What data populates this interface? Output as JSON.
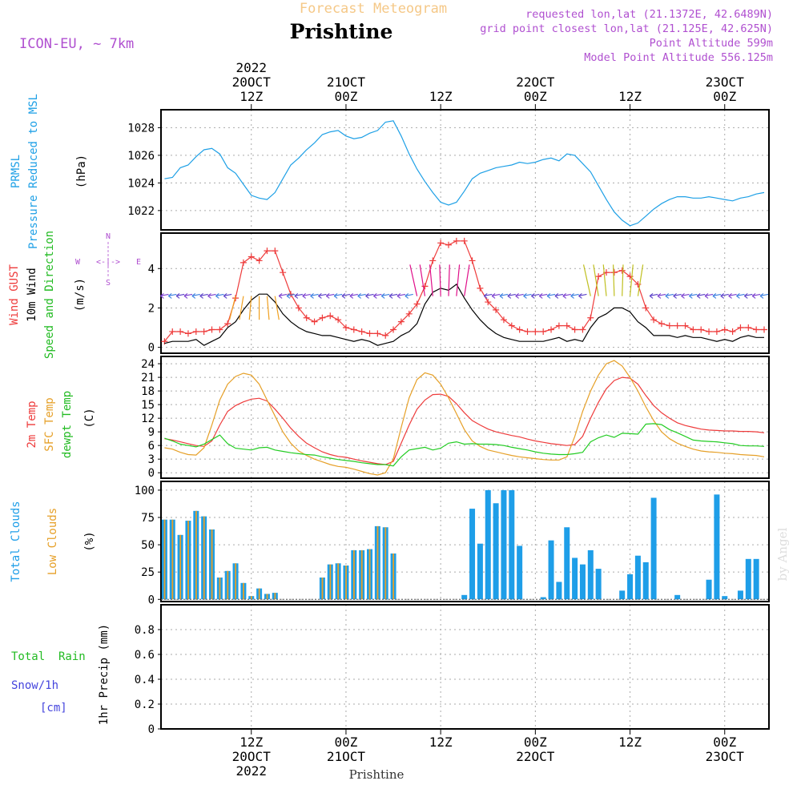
{
  "header": {
    "product": "Forecast Meteogram",
    "station": "Prishtine",
    "model": "ICON-EU, ~ 7km",
    "requested": "requested lon,lat (21.1372E, 42.6489N)",
    "grid_point": "grid point closest lon,lat (21.125E, 42.625N)",
    "point_altitude": "Point Altitude 599m",
    "model_altitude": "Model Point Altitude 556.125m",
    "footer_station": "Prishtine",
    "credit": "by Angel"
  },
  "time_axis": {
    "top": [
      {
        "lines": [
          "2022",
          "20OCT",
          "12Z"
        ]
      },
      {
        "lines": [
          "21OCT",
          "00Z"
        ]
      },
      {
        "lines": [
          "12Z"
        ]
      },
      {
        "lines": [
          "22OCT",
          "00Z"
        ]
      },
      {
        "lines": [
          "12Z"
        ]
      },
      {
        "lines": [
          "23OCT",
          "00Z"
        ]
      }
    ],
    "bottom": [
      {
        "lines": [
          "12Z",
          "20OCT",
          "2022"
        ]
      },
      {
        "lines": [
          "00Z",
          "21OCT"
        ]
      },
      {
        "lines": [
          "12Z"
        ]
      },
      {
        "lines": [
          "00Z",
          "22OCT"
        ]
      },
      {
        "lines": [
          "12Z"
        ]
      },
      {
        "lines": [
          "00Z",
          "23OCT"
        ]
      }
    ]
  },
  "panels": {
    "pressure": {
      "labels": [
        "PRMSL",
        "Pressure Reduced to MSL"
      ],
      "unit": "(hPa)"
    },
    "wind": {
      "labels": [
        "Wind GUST",
        "10m Wind",
        "Speed and Direction"
      ],
      "unit": "(m/s)",
      "compass": {
        "n": "N",
        "s": "S",
        "w": "W",
        "e": "E",
        "arrow_h": "<-|->"
      }
    },
    "temp": {
      "labels": [
        "2m Temp",
        "SFC Temp",
        "dewpt Temp"
      ],
      "unit": "(C)"
    },
    "clouds": {
      "labels": [
        "Total Clouds",
        "Low Clouds"
      ],
      "unit": "(%)"
    },
    "precip": {
      "labels": [
        "Total  Rain",
        "Snow/1h",
        "[cm]"
      ],
      "unit": "1hr Precip (mm)"
    }
  },
  "colors": {
    "pressure": "#1ea0e6",
    "gust": "#ee3b3b",
    "wind": "#000000",
    "temp2m": "#ee3b3b",
    "sfc": "#e6a028",
    "dew": "#22cc22",
    "total_clouds": "#1e9ee8",
    "low_clouds": "#e6a028",
    "purple": "#b050d0",
    "rain": "#22bb22",
    "snow": "#4444dd",
    "title_orange": "#f5c887"
  },
  "chart_data": [
    {
      "type": "line",
      "title": "PRMSL Pressure Reduced to MSL",
      "ylabel": "(hPa)",
      "ylim": [
        1020.6,
        1029.3
      ],
      "yticks": [
        1022,
        1024,
        1026,
        1028
      ],
      "x_hours": [
        0,
        1,
        2,
        3,
        4,
        5,
        6,
        7,
        8,
        9,
        10,
        11,
        12,
        13,
        14,
        15,
        16,
        17,
        18,
        19,
        20,
        21,
        22,
        23,
        24,
        25,
        26,
        27,
        28,
        29,
        30,
        31,
        32,
        33,
        34,
        35,
        36,
        37,
        38,
        39,
        40,
        41,
        42,
        43,
        44,
        45,
        46,
        47,
        48,
        49,
        50,
        51,
        52,
        53,
        54,
        55,
        56,
        57,
        58,
        59,
        60,
        61,
        62,
        63,
        64,
        65,
        66,
        67,
        68,
        69,
        70,
        71,
        72,
        73,
        74,
        75,
        76
      ],
      "series": [
        {
          "values": [
            1024.3,
            1024.4,
            1025.1,
            1025.3,
            1025.9,
            1026.4,
            1026.5,
            1026.1,
            1025.1,
            1024.7,
            1023.9,
            1023.1,
            1022.9,
            1022.8,
            1023.3,
            1024.3,
            1025.3,
            1025.8,
            1026.4,
            1026.9,
            1027.5,
            1027.7,
            1027.8,
            1027.4,
            1027.2,
            1027.3,
            1027.6,
            1027.8,
            1028.4,
            1028.5,
            1027.4,
            1026.1,
            1025.0,
            1024.1,
            1023.3,
            1022.6,
            1022.4,
            1022.6,
            1023.4,
            1024.3,
            1024.7,
            1024.9,
            1025.1,
            1025.2,
            1025.3,
            1025.5,
            1025.4,
            1025.5,
            1025.7,
            1025.8,
            1025.6,
            1026.1,
            1026.0,
            1025.4,
            1024.8,
            1023.8,
            1022.8,
            1021.9,
            1021.3,
            1020.9,
            1021.1,
            1021.6,
            1022.1,
            1022.5,
            1022.8,
            1023.0,
            1023.0,
            1022.9,
            1022.9,
            1023.0,
            1022.9,
            1022.8,
            1022.7,
            1022.9,
            1023.0,
            1023.2,
            1023.3
          ]
        }
      ]
    },
    {
      "type": "line",
      "title": "Wind GUST, 10m Wind Speed and Direction",
      "ylabel": "(m/s)",
      "ylim": [
        -0.3,
        5.8
      ],
      "yticks": [
        0,
        2,
        4
      ],
      "x_hours": [
        0,
        1,
        2,
        3,
        4,
        5,
        6,
        7,
        8,
        9,
        10,
        11,
        12,
        13,
        14,
        15,
        16,
        17,
        18,
        19,
        20,
        21,
        22,
        23,
        24,
        25,
        26,
        27,
        28,
        29,
        30,
        31,
        32,
        33,
        34,
        35,
        36,
        37,
        38,
        39,
        40,
        41,
        42,
        43,
        44,
        45,
        46,
        47,
        48,
        49,
        50,
        51,
        52,
        53,
        54,
        55,
        56,
        57,
        58,
        59,
        60,
        61,
        62,
        63,
        64,
        65,
        66,
        67,
        68,
        69,
        70,
        71,
        72,
        73,
        74,
        75,
        76
      ],
      "series": [
        {
          "name": "Wind GUST",
          "values": [
            0.3,
            0.8,
            0.8,
            0.7,
            0.8,
            0.8,
            0.9,
            0.9,
            1.2,
            2.5,
            4.3,
            4.6,
            4.4,
            4.9,
            4.9,
            3.8,
            2.7,
            2.0,
            1.5,
            1.3,
            1.5,
            1.6,
            1.4,
            1.0,
            0.9,
            0.8,
            0.7,
            0.7,
            0.6,
            0.9,
            1.3,
            1.7,
            2.2,
            3.1,
            4.4,
            5.3,
            5.2,
            5.4,
            5.4,
            4.4,
            3.0,
            2.3,
            1.9,
            1.4,
            1.1,
            0.9,
            0.8,
            0.8,
            0.8,
            0.9,
            1.1,
            1.1,
            0.9,
            0.9,
            1.5,
            3.6,
            3.8,
            3.8,
            3.9,
            3.6,
            3.2,
            2.0,
            1.4,
            1.2,
            1.1,
            1.1,
            1.1,
            0.9,
            0.9,
            0.8,
            0.8,
            0.9,
            0.8,
            1.0,
            1.0,
            0.9,
            0.9
          ]
        },
        {
          "name": "10m Wind",
          "values": [
            0.2,
            0.3,
            0.3,
            0.3,
            0.4,
            0.1,
            0.3,
            0.5,
            1.0,
            1.3,
            1.9,
            2.4,
            2.7,
            2.7,
            2.3,
            1.7,
            1.3,
            1.0,
            0.8,
            0.7,
            0.6,
            0.6,
            0.5,
            0.4,
            0.3,
            0.4,
            0.3,
            0.1,
            0.2,
            0.3,
            0.6,
            0.8,
            1.2,
            2.2,
            2.8,
            3.0,
            2.9,
            3.2,
            2.5,
            1.9,
            1.4,
            1.0,
            0.7,
            0.5,
            0.4,
            0.3,
            0.3,
            0.3,
            0.3,
            0.4,
            0.5,
            0.3,
            0.4,
            0.3,
            1.0,
            1.5,
            1.7,
            2.0,
            2.0,
            1.8,
            1.3,
            1.0,
            0.6,
            0.6,
            0.6,
            0.5,
            0.6,
            0.5,
            0.5,
            0.4,
            0.3,
            0.4,
            0.3,
            0.5,
            0.6,
            0.5,
            0.5
          ]
        }
      ]
    },
    {
      "type": "line",
      "title": "2m Temp, SFC Temp, dewpt Temp",
      "ylabel": "(C)",
      "ylim": [
        -1.2,
        25.6
      ],
      "yticks": [
        0,
        3,
        6,
        9,
        12,
        15,
        18,
        21,
        24
      ],
      "x_hours": [
        0,
        1,
        2,
        3,
        4,
        5,
        6,
        7,
        8,
        9,
        10,
        11,
        12,
        13,
        14,
        15,
        16,
        17,
        18,
        19,
        20,
        21,
        22,
        23,
        24,
        25,
        26,
        27,
        28,
        29,
        30,
        31,
        32,
        33,
        34,
        35,
        36,
        37,
        38,
        39,
        40,
        41,
        42,
        43,
        44,
        45,
        46,
        47,
        48,
        49,
        50,
        51,
        52,
        53,
        54,
        55,
        56,
        57,
        58,
        59,
        60,
        61,
        62,
        63,
        64,
        65,
        66,
        67,
        68,
        69,
        70,
        71,
        72,
        73,
        74,
        75,
        76
      ],
      "series": [
        {
          "name": "2m Temp",
          "values": [
            7.5,
            7.2,
            6.8,
            6.4,
            6.0,
            5.8,
            7.0,
            10.5,
            13.5,
            14.8,
            15.6,
            16.2,
            16.4,
            15.8,
            14.0,
            12.0,
            9.8,
            8.0,
            6.5,
            5.5,
            4.6,
            4.0,
            3.6,
            3.4,
            3.0,
            2.6,
            2.3,
            2.0,
            1.8,
            2.5,
            6.5,
            10.5,
            14.0,
            16.0,
            17.2,
            17.3,
            16.8,
            15.2,
            13.2,
            11.5,
            10.5,
            9.6,
            9.0,
            8.6,
            8.2,
            7.9,
            7.4,
            7.0,
            6.7,
            6.4,
            6.2,
            6.0,
            6.2,
            8.0,
            12.0,
            15.5,
            18.5,
            20.3,
            21.0,
            20.8,
            19.5,
            17.0,
            14.8,
            13.2,
            12.0,
            11.0,
            10.4,
            10.0,
            9.6,
            9.4,
            9.3,
            9.2,
            9.2,
            9.1,
            9.1,
            9.0,
            8.8
          ]
        },
        {
          "name": "SFC Temp",
          "values": [
            5.5,
            5.2,
            4.5,
            4.0,
            3.9,
            5.5,
            10.5,
            16.0,
            19.5,
            21.2,
            21.9,
            21.5,
            19.5,
            16.0,
            12.5,
            9.0,
            6.5,
            4.8,
            3.8,
            3.0,
            2.4,
            1.8,
            1.4,
            1.2,
            0.8,
            0.3,
            -0.2,
            -0.5,
            0.0,
            3.0,
            10.0,
            16.5,
            20.5,
            22.0,
            21.5,
            19.5,
            16.5,
            13.0,
            9.5,
            7.0,
            5.8,
            5.0,
            4.6,
            4.2,
            3.8,
            3.5,
            3.3,
            3.1,
            2.9,
            2.8,
            2.8,
            3.5,
            8.0,
            13.5,
            18.0,
            21.5,
            24.0,
            24.7,
            23.5,
            21.0,
            18.0,
            14.5,
            11.5,
            9.0,
            7.5,
            6.5,
            5.8,
            5.2,
            4.8,
            4.6,
            4.5,
            4.3,
            4.2,
            4.0,
            3.9,
            3.8,
            3.5
          ]
        },
        {
          "name": "dewpt Temp",
          "values": [
            7.6,
            7.0,
            6.3,
            6.0,
            5.7,
            6.3,
            7.3,
            8.3,
            6.4,
            5.4,
            5.2,
            5.0,
            5.5,
            5.6,
            5.0,
            4.7,
            4.4,
            4.2,
            4.0,
            3.9,
            3.5,
            3.2,
            2.9,
            2.7,
            2.5,
            2.2,
            2.0,
            1.8,
            1.8,
            1.5,
            3.5,
            5.0,
            5.3,
            5.6,
            5.0,
            5.4,
            6.5,
            6.8,
            6.3,
            6.4,
            6.3,
            6.3,
            6.2,
            6.0,
            5.6,
            5.3,
            5.0,
            4.6,
            4.3,
            4.1,
            4.0,
            4.0,
            4.2,
            4.5,
            6.8,
            7.7,
            8.3,
            7.8,
            8.7,
            8.6,
            8.5,
            10.7,
            10.8,
            10.6,
            9.5,
            8.8,
            8.0,
            7.2,
            7.0,
            6.9,
            6.8,
            6.6,
            6.4,
            6.0,
            5.9,
            5.9,
            5.8
          ]
        }
      ]
    },
    {
      "type": "bar",
      "title": "Total Clouds, Low Clouds",
      "ylabel": "(%)",
      "ylim": [
        -2,
        108
      ],
      "yticks": [
        0,
        25,
        50,
        75,
        100
      ],
      "x_hours": [
        0,
        1,
        2,
        3,
        4,
        5,
        6,
        7,
        8,
        9,
        10,
        11,
        12,
        13,
        14,
        15,
        16,
        17,
        18,
        19,
        20,
        21,
        22,
        23,
        24,
        25,
        26,
        27,
        28,
        29,
        30,
        31,
        32,
        33,
        34,
        35,
        36,
        37,
        38,
        39,
        40,
        41,
        42,
        43,
        44,
        45,
        46,
        47,
        48,
        49,
        50,
        51,
        52,
        53,
        54,
        55,
        56,
        57,
        58,
        59,
        60,
        61,
        62,
        63,
        64,
        65,
        66,
        67,
        68,
        69,
        70,
        71,
        72,
        73,
        74,
        75,
        76
      ],
      "series": [
        {
          "name": "Total Clouds",
          "values": [
            73,
            73,
            59,
            72,
            81,
            76,
            64,
            20,
            26,
            33,
            15,
            3,
            10,
            5,
            6,
            0,
            0,
            0,
            0,
            0,
            20,
            32,
            33,
            31,
            45,
            45,
            46,
            67,
            66,
            42,
            0,
            0,
            0,
            0,
            0,
            0,
            0,
            0,
            4,
            83,
            51,
            100,
            88,
            100,
            100,
            49,
            0,
            0,
            2,
            54,
            16,
            66,
            38,
            32,
            45,
            28,
            0,
            0,
            8,
            23,
            40,
            34,
            93,
            0,
            0,
            4,
            0,
            0,
            0,
            18,
            96,
            3,
            0,
            8,
            37,
            37,
            0
          ]
        },
        {
          "name": "Low Clouds",
          "values": [
            73,
            73,
            59,
            72,
            81,
            76,
            64,
            20,
            26,
            33,
            15,
            3,
            10,
            5,
            6,
            0,
            0,
            0,
            0,
            0,
            20,
            32,
            33,
            31,
            45,
            45,
            46,
            67,
            66,
            42,
            0,
            0,
            0,
            0,
            0,
            0,
            0,
            0,
            0,
            0,
            0,
            0,
            0,
            0,
            0,
            0,
            0,
            0,
            0,
            0,
            0,
            0,
            0,
            0,
            0,
            0,
            0,
            0,
            0,
            0,
            0,
            0,
            0,
            0,
            0,
            0,
            0,
            0,
            0,
            0,
            0,
            0,
            0,
            0,
            0,
            0,
            0
          ]
        }
      ]
    },
    {
      "type": "bar",
      "title": "Total Rain, Snow/1h [cm]",
      "ylabel": "1hr Precip (mm)",
      "ylim": [
        0,
        1.0
      ],
      "yticks": [
        0,
        0.2,
        0.4,
        0.6,
        0.8
      ],
      "series": [
        {
          "name": "Total Rain",
          "values": []
        },
        {
          "name": "Snow/1h",
          "values": []
        }
      ]
    }
  ]
}
